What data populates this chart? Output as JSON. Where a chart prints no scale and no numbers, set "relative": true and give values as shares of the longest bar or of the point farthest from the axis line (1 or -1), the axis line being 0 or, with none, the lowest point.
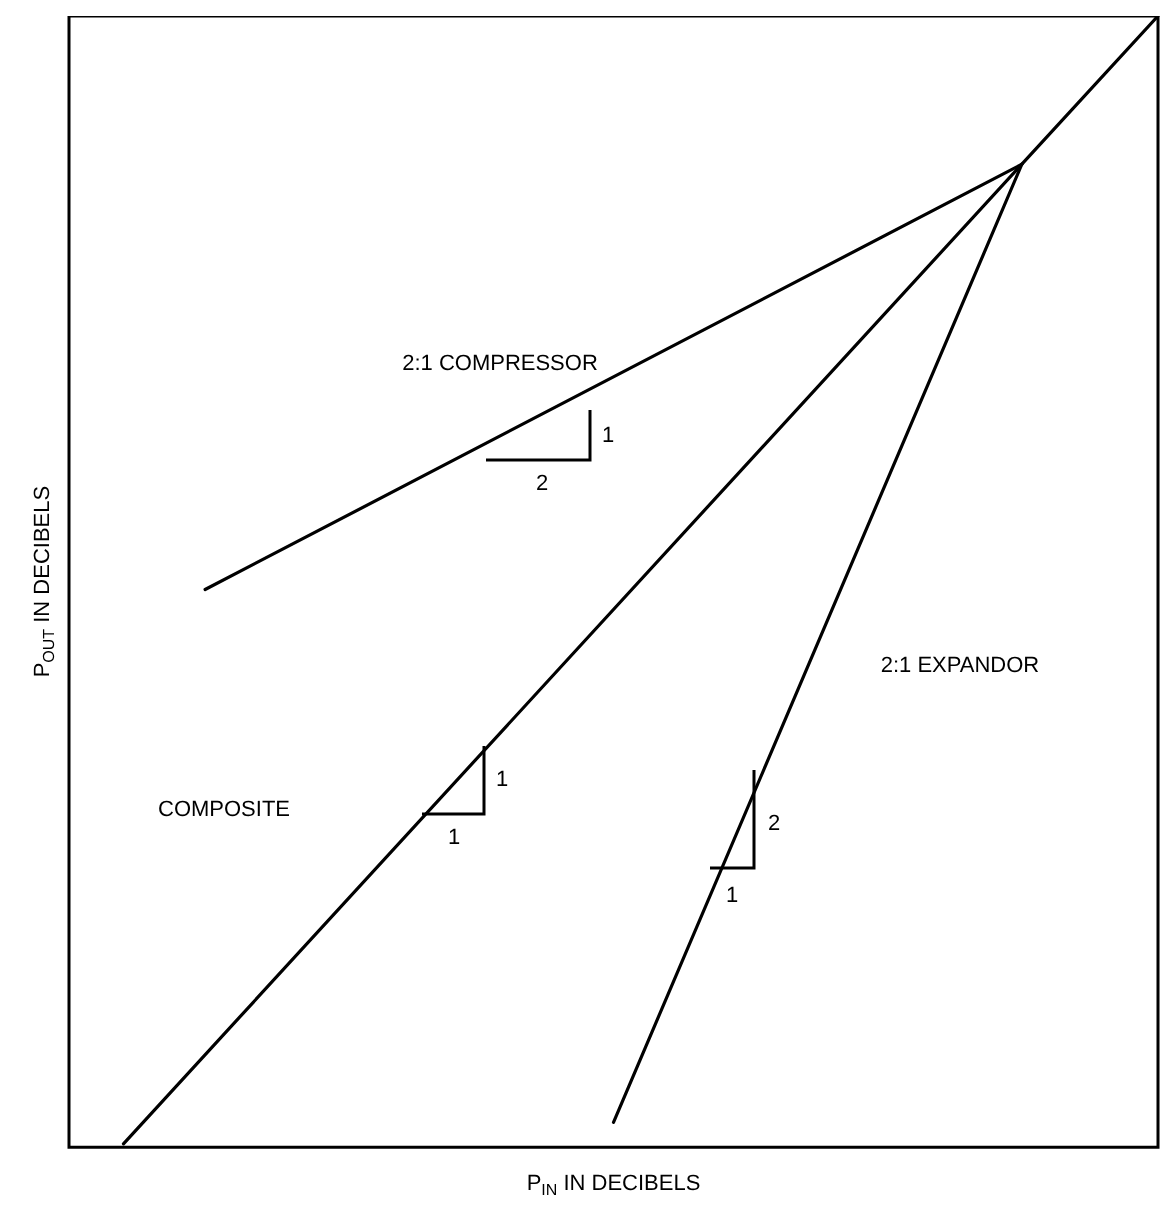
{
  "chart_data": {
    "type": "line",
    "relative": true,
    "xlabel": "P$_{IN}$ IN DECIBELS",
    "ylabel": "P$_{OUT}$ IN DECIBELS",
    "marker": "none",
    "line_style": "solid",
    "grid": false,
    "categories": [
      null,
      null,
      null,
      null,
      null,
      null,
      null,
      null,
      null,
      null,
      null,
      null,
      null,
      null,
      null,
      null,
      null,
      null,
      null,
      null,
      null,
      null,
      null,
      null,
      null,
      null,
      null,
      null,
      null,
      null,
      null,
      null,
      null,
      null,
      null,
      null,
      null,
      null,
      null,
      null,
      null
    ],
    "series": [
      {
        "color": "#000000",
        "values": [
          null,
          null,
          0.003,
          null,
          null,
          null,
          null,
          null,
          null,
          null,
          null,
          null,
          null,
          null,
          null,
          null,
          null,
          null,
          null,
          null,
          null,
          null,
          null,
          null,
          null,
          null,
          null,
          null,
          null,
          null,
          null,
          null,
          null,
          null,
          null,
          0.869,
          null,
          null,
          null,
          null,
          1.0
        ]
      },
      {
        "color": "#000000",
        "values": [
          null,
          null,
          null,
          null,
          null,
          0.493,
          null,
          null,
          null,
          null,
          null,
          null,
          null,
          null,
          null,
          null,
          null,
          null,
          null,
          null,
          null,
          null,
          null,
          null,
          null,
          null,
          null,
          null,
          null,
          null,
          null,
          null,
          null,
          null,
          null,
          0.869,
          null,
          null,
          null,
          null,
          null
        ]
      },
      {
        "color": "#000000",
        "values": [
          null,
          null,
          null,
          null,
          null,
          null,
          null,
          null,
          null,
          null,
          null,
          null,
          null,
          null,
          null,
          null,
          null,
          null,
          null,
          null,
          0.022,
          null,
          null,
          null,
          null,
          null,
          null,
          null,
          null,
          null,
          null,
          null,
          null,
          null,
          null,
          0.869,
          null,
          null,
          null,
          null,
          null
        ]
      }
    ],
    "annotations": [
      "2:1 COMPRESSOR",
      "2:1 EXPANDOR",
      "COMPOSITE",
      "1",
      "2",
      "1",
      "1",
      "2",
      "1"
    ]
  }
}
